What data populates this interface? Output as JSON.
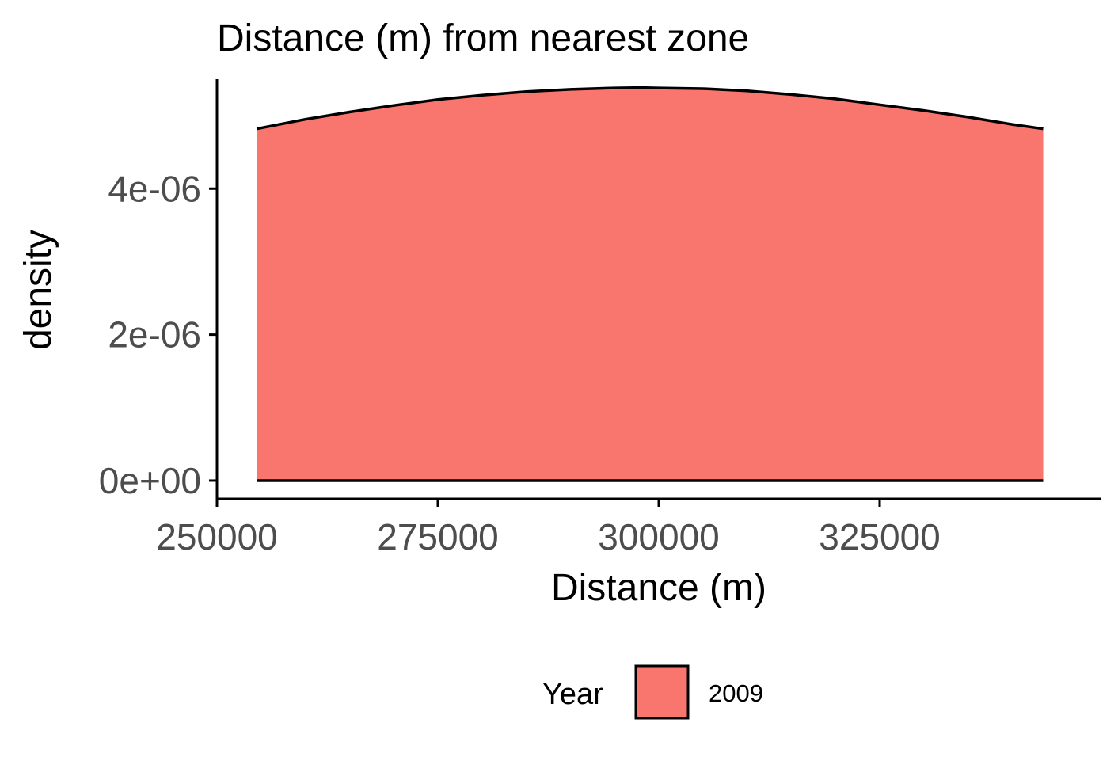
{
  "chart_data": {
    "type": "area",
    "chart_subtype": "density",
    "title": "Distance (m) from nearest zone",
    "xlabel": "Distance (m)",
    "ylabel": "density",
    "xlim": [
      250000,
      350000
    ],
    "ylim": [
      -2.5e-07,
      5.5e-06
    ],
    "x_ticks": [
      {
        "value": 250000,
        "label": "250000"
      },
      {
        "value": 275000,
        "label": "275000"
      },
      {
        "value": 300000,
        "label": "300000"
      },
      {
        "value": 325000,
        "label": "325000"
      }
    ],
    "y_ticks": [
      {
        "value": 0,
        "label": "0e+00"
      },
      {
        "value": 2e-06,
        "label": "2e-06"
      },
      {
        "value": 4e-06,
        "label": "4e-06"
      }
    ],
    "grid": false,
    "legend": {
      "title": "Year",
      "position": "bottom",
      "entries": [
        {
          "label": "2009",
          "color": "#f8766d"
        }
      ]
    },
    "series": [
      {
        "name": "2009",
        "color": "#f8766d",
        "x": [
          254500,
          260000,
          265000,
          270000,
          275000,
          280000,
          285000,
          290000,
          295000,
          298000,
          300000,
          305000,
          310000,
          315000,
          320000,
          325000,
          330000,
          335000,
          340000,
          343500
        ],
        "y": [
          4.82e-06,
          4.95e-06,
          5.05e-06,
          5.14e-06,
          5.22e-06,
          5.28e-06,
          5.33e-06,
          5.36e-06,
          5.38e-06,
          5.385e-06,
          5.38e-06,
          5.37e-06,
          5.34e-06,
          5.29e-06,
          5.23e-06,
          5.15e-06,
          5.07e-06,
          4.98e-06,
          4.88e-06,
          4.82e-06
        ]
      }
    ]
  }
}
